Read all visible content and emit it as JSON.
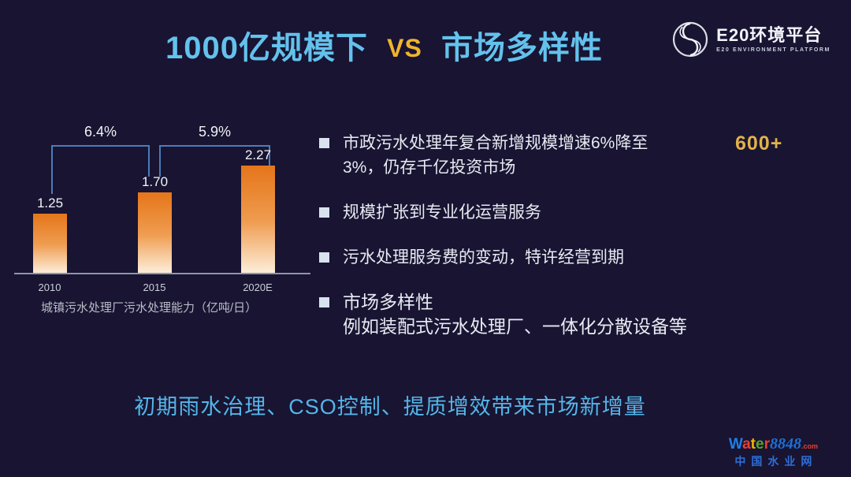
{
  "slide": {
    "background": "#181432",
    "title": {
      "left": "1000亿规模下",
      "vs": "VS",
      "right": "市场多样性",
      "blue": "#63c2ec",
      "gold": "#f0b42c"
    },
    "logo": {
      "title": "E20环境平台",
      "subtitle": "E20 ENVIRONMENT PLATFORM"
    }
  },
  "chart_data": {
    "type": "bar",
    "caption": "城镇污水处理厂污水处理能力（亿吨/日）",
    "categories": [
      "2010",
      "2015",
      "2020E"
    ],
    "values": [
      1.25,
      1.7,
      2.27
    ],
    "value_labels": [
      "1.25",
      "1.70",
      "2.27"
    ],
    "growth_annotations": [
      {
        "label": "6.4%",
        "from": "2010",
        "to": "2015"
      },
      {
        "label": "5.9%",
        "from": "2015",
        "to": "2020E"
      }
    ],
    "ylim": [
      0,
      2.5
    ],
    "grid": false,
    "bar_gradient_top": "#e5751a",
    "bar_gradient_bottom": "#fdeed9",
    "bracket_color": "#4a7db8",
    "axis_color": "#8f96a6"
  },
  "bullets": {
    "marker_color": "#d9e2ef",
    "items": [
      {
        "line1": "市政污水处理年复合新增规模增速6%降至",
        "line2": "3%，仍存千亿投资市场"
      },
      {
        "line1": "规模扩张到专业化运营服务",
        "line2": ""
      },
      {
        "line1": "污水处理服务费的变动，特许经营到期",
        "line2": ""
      },
      {
        "line1": "市场多样性",
        "line2": "例如装配式污水处理厂、一体化分散设备等"
      }
    ],
    "side_note": {
      "text": "600+",
      "color": "#e2b14b"
    }
  },
  "footer": {
    "highlight": "初期雨水治理、CSO控制、提质增效带来市场新增量",
    "color": "#55b6e8"
  },
  "watermark": {
    "word_letters": [
      {
        "ch": "W",
        "color": "#1f7fe8"
      },
      {
        "ch": "a",
        "color": "#e8402f"
      },
      {
        "ch": "t",
        "color": "#f0b400"
      },
      {
        "ch": "e",
        "color": "#58a426"
      },
      {
        "ch": "r",
        "color": "#e8402f"
      }
    ],
    "number": "8848",
    "domain_suffix": ".com",
    "subtitle": "中国水业网"
  }
}
